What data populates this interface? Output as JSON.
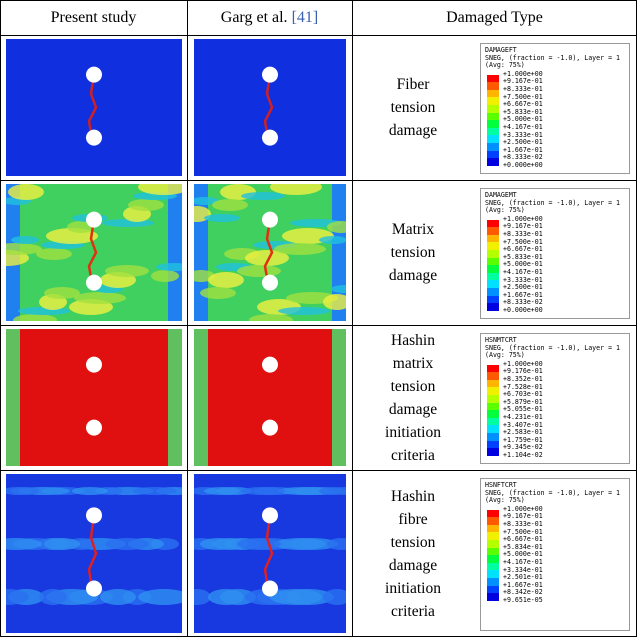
{
  "header": {
    "col1": "Present study",
    "col2": "Garg et al. ",
    "col2_ref": "[41]",
    "col3": "Damaged Type"
  },
  "rows": [
    {
      "label": [
        "Fiber",
        "tension",
        "damage"
      ],
      "legend": {
        "variable": "DAMAGEFT",
        "info": "SNEG, (fraction = -1.0), Layer = 1",
        "avg": "(Avg: 75%)",
        "values": [
          "+1.000e+00",
          "+9.167e-01",
          "+8.333e-01",
          "+7.500e-01",
          "+6.667e-01",
          "+5.833e-01",
          "+5.000e-01",
          "+4.167e-01",
          "+3.333e-01",
          "+2.500e-01",
          "+1.667e-01",
          "+8.333e-02",
          "+0.000e+00"
        ]
      }
    },
    {
      "label": [
        "Matrix",
        "tension",
        "damage"
      ],
      "legend": {
        "variable": "DAMAGEMT",
        "info": "SNEG, (fraction = -1.0), Layer = 1",
        "avg": "(Avg: 75%)",
        "values": [
          "+1.000e+00",
          "+9.167e-01",
          "+8.333e-01",
          "+7.500e-01",
          "+6.667e-01",
          "+5.833e-01",
          "+5.000e-01",
          "+4.167e-01",
          "+3.333e-01",
          "+2.500e-01",
          "+1.667e-01",
          "+8.333e-02",
          "+0.000e+00"
        ]
      }
    },
    {
      "label": [
        "Hashin",
        "matrix",
        "tension",
        "damage",
        "initiation",
        "criteria"
      ],
      "legend": {
        "variable": "HSNMTCRT",
        "info": "SNEG, (fraction = -1.0), Layer = 1",
        "avg": "(Avg: 75%)",
        "values": [
          "+1.000e+00",
          "+9.176e-01",
          "+8.352e-01",
          "+7.528e-01",
          "+6.703e-01",
          "+5.879e-01",
          "+5.055e-01",
          "+4.231e-01",
          "+3.407e-01",
          "+2.583e-01",
          "+1.759e-01",
          "+9.345e-02",
          "+1.104e-02"
        ]
      }
    },
    {
      "label": [
        "Hashin",
        "fibre",
        "tension",
        "damage",
        "initiation",
        "criteria"
      ],
      "legend": {
        "variable": "HSNFTCRT",
        "info": "SNEG, (fraction = -1.0), Layer = 1",
        "avg": "(Avg: 75%)",
        "values": [
          "+1.000e+00",
          "+9.167e-01",
          "+8.333e-01",
          "+7.500e-01",
          "+6.667e-01",
          "+5.834e-01",
          "+5.000e-01",
          "+4.167e-01",
          "+3.334e-01",
          "+2.501e-01",
          "+1.667e-01",
          "+8.342e-02",
          "+9.651e-05"
        ]
      }
    }
  ]
}
